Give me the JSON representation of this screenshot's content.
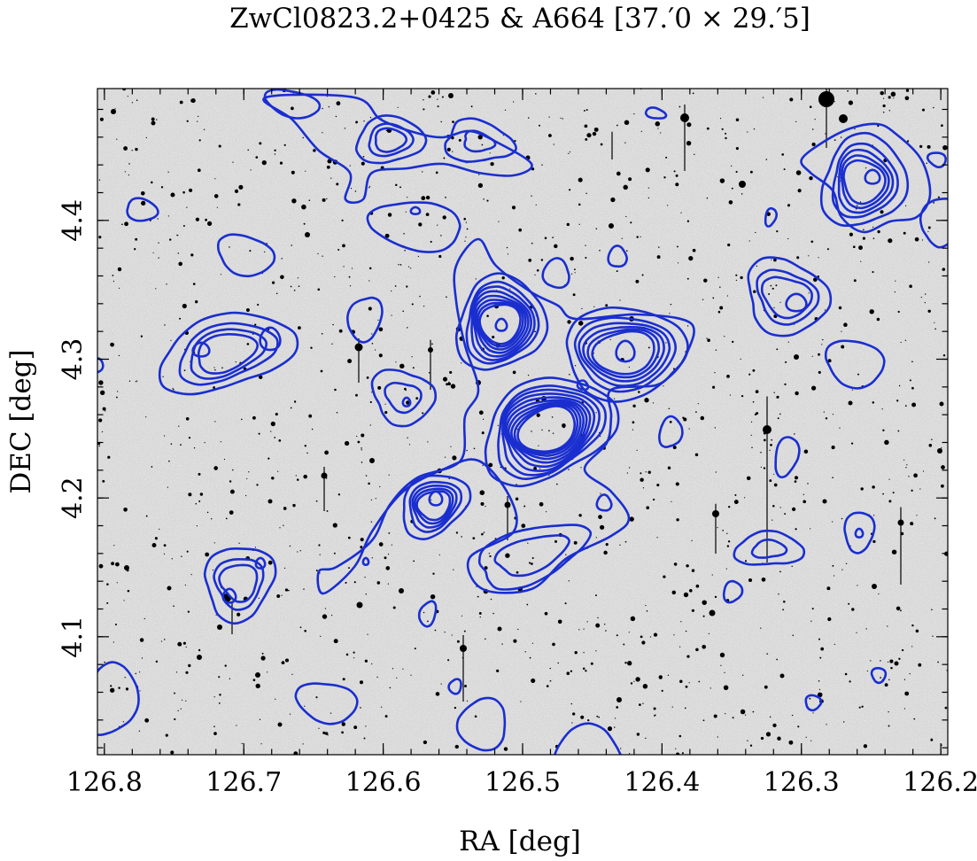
{
  "chart_data": {
    "type": "contour",
    "title": "ZwCl0823.2+0425 & A664  [37.′0 × 29.′5]",
    "xlabel": "RA [deg]",
    "ylabel": "DEC [deg]",
    "xlim": [
      126.805,
      126.195
    ],
    "ylim": [
      4.015,
      4.495
    ],
    "x_ticks": [
      126.8,
      126.7,
      126.6,
      126.5,
      126.4,
      126.3,
      126.2
    ],
    "x_tick_labels": [
      "126.8",
      "126.7",
      "126.6",
      "126.5",
      "126.4",
      "126.3",
      "126.2"
    ],
    "y_ticks": [
      4.1,
      4.2,
      4.3,
      4.4
    ],
    "y_tick_labels": [
      "4.1",
      "4.2",
      "4.3",
      "4.4"
    ],
    "x_minor_step": 0.02,
    "y_minor_step": 0.02,
    "background": "grayscale optical sky image with field stars",
    "contour_color": "#1a2ed0",
    "contour_peaks": [
      {
        "ra": 126.487,
        "dec": 4.252,
        "levels": 10
      },
      {
        "ra": 126.517,
        "dec": 4.327,
        "levels": 8
      },
      {
        "ra": 126.432,
        "dec": 4.312,
        "levels": 6
      },
      {
        "ra": 126.561,
        "dec": 4.203,
        "levels": 5
      },
      {
        "ra": 126.244,
        "dec": 4.435,
        "levels": 5
      },
      {
        "ra": 126.719,
        "dec": 4.312,
        "levels": 4
      },
      {
        "ra": 126.3,
        "dec": 4.346,
        "levels": 3
      },
      {
        "ra": 126.713,
        "dec": 4.143,
        "levels": 3
      },
      {
        "ra": 126.578,
        "dec": 4.434,
        "levels": 3
      },
      {
        "ra": 126.469,
        "dec": 4.157,
        "levels": 2
      },
      {
        "ra": 126.597,
        "dec": 4.27,
        "levels": 2
      },
      {
        "ra": 126.318,
        "dec": 4.166,
        "levels": 2
      },
      {
        "ra": 126.508,
        "dec": 4.453,
        "levels": 2
      }
    ]
  }
}
